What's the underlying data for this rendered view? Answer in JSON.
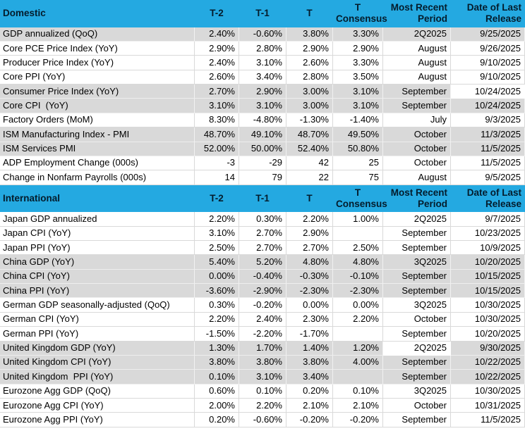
{
  "colors": {
    "header_bg": "#24a9e1",
    "header_text": "#041c2c",
    "shaded_row_bg": "#d9d9d9",
    "grid_line": "#d9d9d9",
    "body_bg": "#ffffff"
  },
  "columns": [
    "T-2",
    "T-1",
    "T",
    "T Consensus",
    "Most Recent Period",
    "Date of Last Release"
  ],
  "sections": [
    {
      "title": "Domestic",
      "rows": [
        {
          "label": "GDP annualized (QoQ)",
          "values": [
            "2.40%",
            "-0.60%",
            "3.80%",
            "3.30%",
            "2Q2025",
            "9/25/2025"
          ],
          "shaded": true,
          "white_cells": []
        },
        {
          "label": "Core PCE Price Index (YoY)",
          "values": [
            "2.90%",
            "2.80%",
            "2.90%",
            "2.90%",
            "August",
            "9/26/2025"
          ],
          "shaded": false,
          "white_cells": []
        },
        {
          "label": "Producer Price Index (YoY)",
          "values": [
            "2.40%",
            "3.10%",
            "2.60%",
            "3.30%",
            "August",
            "9/10/2025"
          ],
          "shaded": false,
          "white_cells": []
        },
        {
          "label": "Core PPI (YoY)",
          "values": [
            "2.60%",
            "3.40%",
            "2.80%",
            "3.50%",
            "August",
            "9/10/2025"
          ],
          "shaded": false,
          "white_cells": []
        },
        {
          "label": "Consumer Price Index (YoY)",
          "values": [
            "2.70%",
            "2.90%",
            "3.00%",
            "3.10%",
            "September",
            "10/24/2025"
          ],
          "shaded": true,
          "white_cells": [
            5
          ]
        },
        {
          "label": "Core CPI  (YoY)",
          "values": [
            "3.10%",
            "3.10%",
            "3.00%",
            "3.10%",
            "September",
            "10/24/2025"
          ],
          "shaded": true,
          "white_cells": []
        },
        {
          "label": "Factory Orders (MoM)",
          "values": [
            "8.30%",
            "-4.80%",
            "-1.30%",
            "-1.40%",
            "July",
            "9/3/2025"
          ],
          "shaded": false,
          "white_cells": []
        },
        {
          "label": "ISM Manufacturing Index - PMI",
          "values": [
            "48.70%",
            "49.10%",
            "48.70%",
            "49.50%",
            "October",
            "11/3/2025"
          ],
          "shaded": true,
          "white_cells": []
        },
        {
          "label": "ISM Services PMI",
          "values": [
            "52.00%",
            "50.00%",
            "52.40%",
            "50.80%",
            "October",
            "11/5/2025"
          ],
          "shaded": true,
          "white_cells": []
        },
        {
          "label": "ADP Employment Change (000s)",
          "values": [
            "-3",
            "-29",
            "42",
            "25",
            "October",
            "11/5/2025"
          ],
          "shaded": false,
          "white_cells": []
        },
        {
          "label": "Change in Nonfarm Payrolls (000s)",
          "values": [
            "14",
            "79",
            "22",
            "75",
            "August",
            "9/5/2025"
          ],
          "shaded": false,
          "white_cells": []
        }
      ]
    },
    {
      "title": "International",
      "rows": [
        {
          "label": "Japan GDP annualized",
          "values": [
            "2.20%",
            "0.30%",
            "2.20%",
            "1.00%",
            "2Q2025",
            "9/7/2025"
          ],
          "shaded": false,
          "white_cells": []
        },
        {
          "label": "Japan CPI (YoY)",
          "values": [
            "3.10%",
            "2.70%",
            "2.90%",
            "",
            "September",
            "10/23/2025"
          ],
          "shaded": false,
          "white_cells": []
        },
        {
          "label": "Japan PPI (YoY)",
          "values": [
            "2.50%",
            "2.70%",
            "2.70%",
            "2.50%",
            "September",
            "10/9/2025"
          ],
          "shaded": false,
          "white_cells": []
        },
        {
          "label": "China GDP (YoY)",
          "values": [
            "5.40%",
            "5.20%",
            "4.80%",
            "4.80%",
            "3Q2025",
            "10/20/2025"
          ],
          "shaded": true,
          "white_cells": []
        },
        {
          "label": "China CPI (YoY)",
          "values": [
            "0.00%",
            "-0.40%",
            "-0.30%",
            "-0.10%",
            "September",
            "10/15/2025"
          ],
          "shaded": true,
          "white_cells": []
        },
        {
          "label": "China PPI (YoY)",
          "values": [
            "-3.60%",
            "-2.90%",
            "-2.30%",
            "-2.30%",
            "September",
            "10/15/2025"
          ],
          "shaded": true,
          "white_cells": []
        },
        {
          "label": "German GDP seasonally-adjusted (QoQ)",
          "values": [
            "0.30%",
            "-0.20%",
            "0.00%",
            "0.00%",
            "3Q2025",
            "10/30/2025"
          ],
          "shaded": false,
          "white_cells": []
        },
        {
          "label": "German CPI (YoY)",
          "values": [
            "2.20%",
            "2.40%",
            "2.30%",
            "2.20%",
            "October",
            "10/30/2025"
          ],
          "shaded": false,
          "white_cells": []
        },
        {
          "label": "German PPI (YoY)",
          "values": [
            "-1.50%",
            "-2.20%",
            "-1.70%",
            "",
            "September",
            "10/20/2025"
          ],
          "shaded": false,
          "white_cells": []
        },
        {
          "label": "United Kingdom GDP (YoY)",
          "values": [
            "1.30%",
            "1.70%",
            "1.40%",
            "1.20%",
            "2Q2025",
            "9/30/2025"
          ],
          "shaded": true,
          "white_cells": [
            4
          ]
        },
        {
          "label": "United Kingdom CPI (YoY)",
          "values": [
            "3.80%",
            "3.80%",
            "3.80%",
            "4.00%",
            "September",
            "10/22/2025"
          ],
          "shaded": true,
          "white_cells": []
        },
        {
          "label": "United Kingdom  PPI (YoY)",
          "values": [
            "0.10%",
            "3.10%",
            "3.40%",
            "",
            "September",
            "10/22/2025"
          ],
          "shaded": true,
          "white_cells": []
        },
        {
          "label": "Eurozone Agg GDP (QoQ)",
          "values": [
            "0.60%",
            "0.10%",
            "0.20%",
            "0.10%",
            "3Q2025",
            "10/30/2025"
          ],
          "shaded": false,
          "white_cells": []
        },
        {
          "label": "Eurozone Agg CPI (YoY)",
          "values": [
            "2.00%",
            "2.20%",
            "2.10%",
            "2.10%",
            "October",
            "10/31/2025"
          ],
          "shaded": false,
          "white_cells": []
        },
        {
          "label": "Eurozone Agg PPI (YoY)",
          "values": [
            "0.20%",
            "-0.60%",
            "-0.20%",
            "-0.20%",
            "September",
            "11/5/2025"
          ],
          "shaded": false,
          "white_cells": []
        }
      ]
    }
  ]
}
